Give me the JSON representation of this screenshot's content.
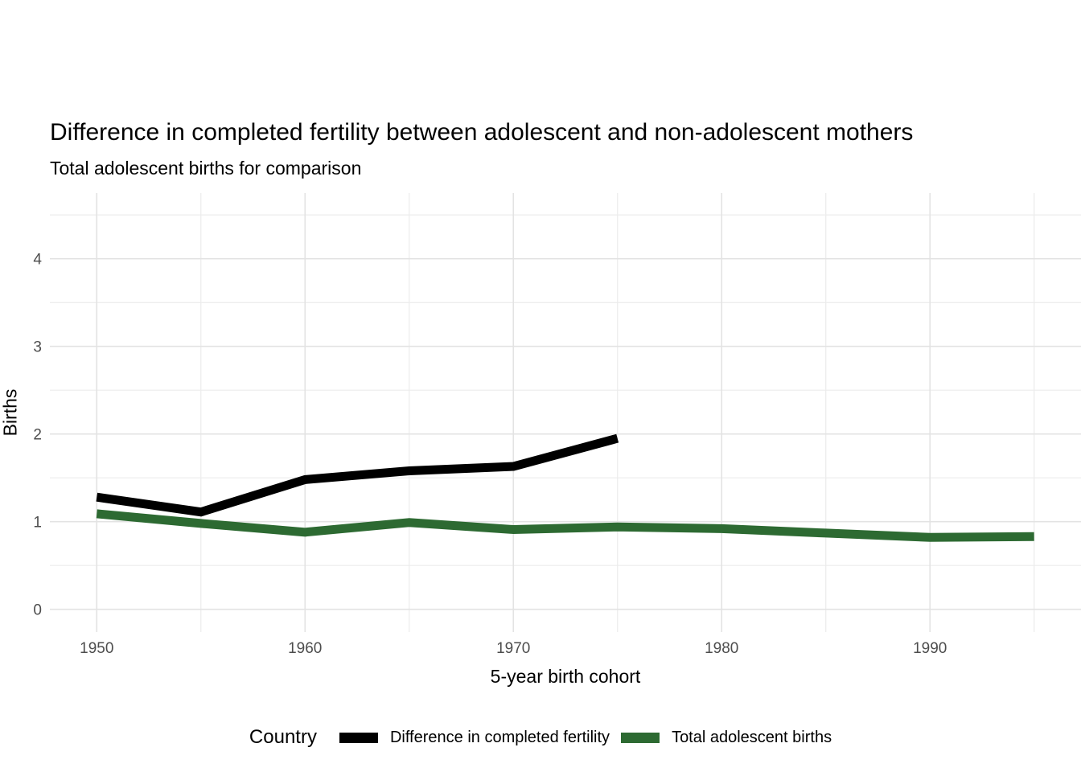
{
  "title": "Difference in completed fertility between adolescent and non-adolescent mothers",
  "subtitle": "Total adolescent births for comparison",
  "axes": {
    "x_title": "5-year birth cohort",
    "y_title": "Births"
  },
  "legend": {
    "title": "Country",
    "items": [
      {
        "label": "Difference in completed fertility",
        "color": "#000000"
      },
      {
        "label": "Total adolescent births",
        "color": "#2d6a32"
      }
    ]
  },
  "colors": {
    "background": "#ffffff",
    "grid_major": "#e3e3e3",
    "grid_minor": "#ececec",
    "tick_label": "#4d4d4d",
    "series_black": "#000000",
    "series_green": "#2d6a32"
  },
  "chart_data": {
    "type": "line",
    "title": "Difference in completed fertility between adolescent and non-adolescent mothers",
    "subtitle": "Total adolescent births for comparison",
    "xlabel": "5-year birth cohort",
    "ylabel": "Births",
    "x_ticks": [
      1950,
      1960,
      1970,
      1980,
      1990
    ],
    "x_minor_ticks": [
      1955,
      1965,
      1975,
      1985,
      1995
    ],
    "y_ticks": [
      0,
      1,
      2,
      3,
      4
    ],
    "y_minor_ticks": [
      0.5,
      1.5,
      2.5,
      3.5,
      4.5
    ],
    "xlim": [
      1947.75,
      1997.25
    ],
    "ylim": [
      -0.26,
      4.75
    ],
    "grid": "major+minor",
    "legend_position": "bottom",
    "legend_title": "Country",
    "line_width": 11,
    "series": [
      {
        "name": "Difference in completed fertility",
        "color": "#000000",
        "x": [
          1950,
          1955,
          1960,
          1965,
          1970,
          1975
        ],
        "y": [
          1.28,
          1.11,
          1.48,
          1.58,
          1.63,
          1.95
        ]
      },
      {
        "name": "Total adolescent births",
        "color": "#2d6a32",
        "x": [
          1950,
          1955,
          1960,
          1965,
          1970,
          1975,
          1980,
          1985,
          1990,
          1995
        ],
        "y": [
          1.09,
          0.98,
          0.88,
          0.99,
          0.91,
          0.94,
          0.92,
          0.87,
          0.82,
          0.83
        ]
      }
    ]
  }
}
